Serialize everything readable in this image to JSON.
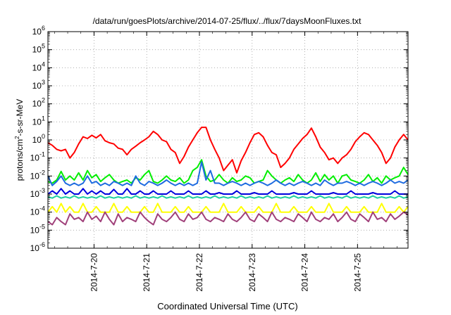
{
  "chart_data": {
    "type": "line",
    "title": "/data/run/goesPlots/archive/2014-07-25/flux/../flux/7daysMoonFluxes.txt",
    "xlabel": "Coordinated Universal Time (UTC)",
    "ylabel": {
      "base": "protons/cm",
      "sup": "2",
      "rest": "-s-sr-MeV"
    },
    "yscale": "log",
    "ylim": [
      1e-06,
      1000000.0
    ],
    "yticks": [
      {
        "base": "10",
        "exp": "-6",
        "value": 1e-06
      },
      {
        "base": "10",
        "exp": "-5",
        "value": 1e-05
      },
      {
        "base": "10",
        "exp": "-4",
        "value": 0.0001
      },
      {
        "base": "10",
        "exp": "-3",
        "value": 0.001
      },
      {
        "base": "10",
        "exp": "-2",
        "value": 0.01
      },
      {
        "base": "10",
        "exp": "-1",
        "value": 0.1
      },
      {
        "base": "10",
        "exp": "0",
        "value": 1
      },
      {
        "base": "10",
        "exp": "1",
        "value": 10
      },
      {
        "base": "10",
        "exp": "2",
        "value": 100
      },
      {
        "base": "10",
        "exp": "3",
        "value": 1000
      },
      {
        "base": "10",
        "exp": "4",
        "value": 10000
      },
      {
        "base": "10",
        "exp": "5",
        "value": 100000
      },
      {
        "base": "10",
        "exp": "6",
        "value": 1000000
      }
    ],
    "xlim": [
      "2014-07-19T03:00",
      "2014-07-25T23:00"
    ],
    "xticks": [
      {
        "label": "2014-7-20",
        "t": "2014-07-20T00:00"
      },
      {
        "label": "2014-7-21",
        "t": "2014-07-21T00:00"
      },
      {
        "label": "2014-7-22",
        "t": "2014-07-22T00:00"
      },
      {
        "label": "2014-7-23",
        "t": "2014-07-23T00:00"
      },
      {
        "label": "2014-7-24",
        "t": "2014-07-24T00:00"
      },
      {
        "label": "2014-7-25",
        "t": "2014-07-25T00:00"
      }
    ],
    "grid": true,
    "legend": "none",
    "x": [
      "2014-07-19T03:00",
      "2014-07-19T05:00",
      "2014-07-19T07:00",
      "2014-07-19T09:00",
      "2014-07-19T11:00",
      "2014-07-19T13:00",
      "2014-07-19T15:00",
      "2014-07-19T17:00",
      "2014-07-19T19:00",
      "2014-07-19T21:00",
      "2014-07-19T23:00",
      "2014-07-20T01:00",
      "2014-07-20T03:00",
      "2014-07-20T05:00",
      "2014-07-20T07:00",
      "2014-07-20T09:00",
      "2014-07-20T11:00",
      "2014-07-20T13:00",
      "2014-07-20T15:00",
      "2014-07-20T17:00",
      "2014-07-20T19:00",
      "2014-07-20T21:00",
      "2014-07-20T23:00",
      "2014-07-21T01:00",
      "2014-07-21T03:00",
      "2014-07-21T05:00",
      "2014-07-21T07:00",
      "2014-07-21T09:00",
      "2014-07-21T11:00",
      "2014-07-21T13:00",
      "2014-07-21T15:00",
      "2014-07-21T17:00",
      "2014-07-21T19:00",
      "2014-07-21T21:00",
      "2014-07-21T23:00",
      "2014-07-22T01:00",
      "2014-07-22T03:00",
      "2014-07-22T05:00",
      "2014-07-22T07:00",
      "2014-07-22T09:00",
      "2014-07-22T11:00",
      "2014-07-22T13:00",
      "2014-07-22T15:00",
      "2014-07-22T17:00",
      "2014-07-22T19:00",
      "2014-07-22T21:00",
      "2014-07-22T23:00",
      "2014-07-23T01:00",
      "2014-07-23T03:00",
      "2014-07-23T05:00",
      "2014-07-23T07:00",
      "2014-07-23T09:00",
      "2014-07-23T11:00",
      "2014-07-23T13:00",
      "2014-07-23T15:00",
      "2014-07-23T17:00",
      "2014-07-23T19:00",
      "2014-07-23T21:00",
      "2014-07-23T23:00",
      "2014-07-24T01:00",
      "2014-07-24T03:00",
      "2014-07-24T05:00",
      "2014-07-24T07:00",
      "2014-07-24T09:00",
      "2014-07-24T11:00",
      "2014-07-24T13:00",
      "2014-07-24T15:00",
      "2014-07-24T17:00",
      "2014-07-24T19:00",
      "2014-07-24T21:00",
      "2014-07-24T23:00",
      "2014-07-25T01:00",
      "2014-07-25T03:00",
      "2014-07-25T05:00",
      "2014-07-25T07:00",
      "2014-07-25T09:00",
      "2014-07-25T11:00",
      "2014-07-25T13:00",
      "2014-07-25T15:00",
      "2014-07-25T17:00",
      "2014-07-25T19:00",
      "2014-07-25T21:00",
      "2014-07-25T23:00"
    ],
    "series": [
      {
        "color": "#ff0000",
        "width": 2,
        "values": [
          0.7,
          0.5,
          0.3,
          0.25,
          0.3,
          0.1,
          0.2,
          0.6,
          1.5,
          1.2,
          1.8,
          1.3,
          2.0,
          0.9,
          0.7,
          0.6,
          0.35,
          0.3,
          0.15,
          0.3,
          0.45,
          0.7,
          1.0,
          1.5,
          3.0,
          2.0,
          1.0,
          0.8,
          0.3,
          0.2,
          0.05,
          0.12,
          0.4,
          1.0,
          2.5,
          5.0,
          5.0,
          1.0,
          0.3,
          0.1,
          0.02,
          0.04,
          0.08,
          0.015,
          0.07,
          0.2,
          0.7,
          2.0,
          2.5,
          1.5,
          0.5,
          0.2,
          0.15,
          0.03,
          0.05,
          0.1,
          0.3,
          0.6,
          1.2,
          2.0,
          4.5,
          1.5,
          0.4,
          0.2,
          0.08,
          0.1,
          0.05,
          0.1,
          0.15,
          0.3,
          0.8,
          1.5,
          2.5,
          2.0,
          1.0,
          0.5,
          0.2,
          0.05,
          0.1,
          0.4,
          1.0,
          2.0,
          1.0
        ]
      },
      {
        "color": "#00ee00",
        "width": 2,
        "values": [
          0.005,
          0.004,
          0.006,
          0.018,
          0.006,
          0.01,
          0.006,
          0.015,
          0.006,
          0.02,
          0.008,
          0.012,
          0.005,
          0.008,
          0.012,
          0.006,
          0.004,
          0.005,
          0.006,
          0.004,
          0.008,
          0.006,
          0.012,
          0.02,
          0.005,
          0.004,
          0.006,
          0.01,
          0.006,
          0.005,
          0.008,
          0.004,
          0.006,
          0.02,
          0.03,
          0.08,
          0.01,
          0.005,
          0.006,
          0.012,
          0.006,
          0.004,
          0.008,
          0.005,
          0.006,
          0.01,
          0.008,
          0.004,
          0.005,
          0.006,
          0.02,
          0.01,
          0.006,
          0.004,
          0.006,
          0.008,
          0.005,
          0.012,
          0.006,
          0.004,
          0.006,
          0.015,
          0.005,
          0.012,
          0.006,
          0.01,
          0.004,
          0.01,
          0.012,
          0.006,
          0.005,
          0.004,
          0.006,
          0.012,
          0.005,
          0.008,
          0.004,
          0.01,
          0.006,
          0.008,
          0.01,
          0.03,
          0.012
        ]
      },
      {
        "color": "#1e6be0",
        "width": 2,
        "values": [
          0.01,
          0.003,
          0.005,
          0.01,
          0.004,
          0.003,
          0.004,
          0.003,
          0.004,
          0.01,
          0.004,
          0.005,
          0.003,
          0.004,
          0.003,
          0.005,
          0.004,
          0.003,
          0.004,
          0.003,
          0.01,
          0.004,
          0.003,
          0.005,
          0.004,
          0.003,
          0.004,
          0.006,
          0.004,
          0.003,
          0.004,
          0.003,
          0.004,
          0.003,
          0.004,
          0.06,
          0.006,
          0.02,
          0.004,
          0.004,
          0.003,
          0.004,
          0.005,
          0.004,
          0.003,
          0.004,
          0.003,
          0.004,
          0.005,
          0.004,
          0.003,
          0.004,
          0.006,
          0.004,
          0.003,
          0.004,
          0.003,
          0.004,
          0.005,
          0.004,
          0.003,
          0.004,
          0.003,
          0.006,
          0.004,
          0.003,
          0.004,
          0.004,
          0.005,
          0.004,
          0.003,
          0.004,
          0.003,
          0.004,
          0.005,
          0.004,
          0.003,
          0.004,
          0.006,
          0.004,
          0.005,
          0.004,
          0.006
        ]
      },
      {
        "color": "#0000dd",
        "width": 2,
        "values": [
          0.001,
          0.0015,
          0.001,
          0.002,
          0.001,
          0.0015,
          0.001,
          0.001,
          0.002,
          0.001,
          0.0015,
          0.001,
          0.0015,
          0.001,
          0.001,
          0.0018,
          0.001,
          0.001,
          0.002,
          0.001,
          0.001,
          0.0015,
          0.001,
          0.001,
          0.0015,
          0.001,
          0.001,
          0.001,
          0.0015,
          0.001,
          0.001,
          0.001,
          0.0015,
          0.001,
          0.001,
          0.001,
          0.0015,
          0.001,
          0.001,
          0.0012,
          0.001,
          0.001,
          0.001,
          0.0015,
          0.001,
          0.001,
          0.001,
          0.0012,
          0.001,
          0.001,
          0.001,
          0.0015,
          0.001,
          0.001,
          0.001,
          0.001,
          0.0012,
          0.001,
          0.001,
          0.001,
          0.0015,
          0.001,
          0.001,
          0.001,
          0.001,
          0.0012,
          0.001,
          0.001,
          0.001,
          0.0015,
          0.001,
          0.001,
          0.001,
          0.001,
          0.0012,
          0.001,
          0.001,
          0.001,
          0.001,
          0.0015,
          0.001,
          0.001,
          0.001
        ]
      },
      {
        "color": "#20d0a0",
        "width": 2,
        "values": [
          0.0007,
          0.0006,
          0.0008,
          0.0006,
          0.0007,
          0.0006,
          0.0008,
          0.0006,
          0.0007,
          0.0006,
          0.0007,
          0.0006,
          0.0008,
          0.0006,
          0.0007,
          0.0006,
          0.0007,
          0.0006,
          0.0007,
          0.0006,
          0.0008,
          0.0006,
          0.0007,
          0.0006,
          0.0007,
          0.0006,
          0.0008,
          0.0006,
          0.0007,
          0.0006,
          0.0007,
          0.0006,
          0.0008,
          0.0006,
          0.0007,
          0.0006,
          0.0007,
          0.0006,
          0.0008,
          0.0006,
          0.0007,
          0.0006,
          0.0007,
          0.0006,
          0.0008,
          0.0006,
          0.0007,
          0.0006,
          0.0007,
          0.0006,
          0.0008,
          0.0006,
          0.0007,
          0.0006,
          0.0007,
          0.0006,
          0.0008,
          0.0006,
          0.0007,
          0.0006,
          0.0007,
          0.0006,
          0.0008,
          0.0006,
          0.0007,
          0.0006,
          0.0007,
          0.0006,
          0.0008,
          0.0006,
          0.0007,
          0.0006,
          0.0007,
          0.0006,
          0.0008,
          0.0006,
          0.0007,
          0.0006,
          0.0007,
          0.0006,
          0.0008,
          0.0006,
          0.0007
        ]
      },
      {
        "color": "#ffff00",
        "width": 2,
        "values": [
          0.0001,
          0.0002,
          0.0001,
          0.0003,
          0.0001,
          0.0002,
          0.0001,
          0.0001,
          0.0003,
          0.0001,
          0.0001,
          0.0002,
          0.0001,
          0.0001,
          0.0001,
          0.0003,
          0.0001,
          0.0001,
          0.0002,
          0.0001,
          0.0001,
          0.0001,
          0.0002,
          0.0001,
          0.0001,
          0.0003,
          0.0001,
          0.0001,
          0.0001,
          0.0002,
          0.0001,
          0.0001,
          0.0002,
          0.0001,
          0.0001,
          0.0001,
          0.0002,
          0.0001,
          0.0001,
          0.0001,
          0.0003,
          0.0001,
          0.0001,
          0.0001,
          0.0002,
          0.0001,
          0.0001,
          0.0001,
          0.0002,
          0.0001,
          0.0001,
          0.0001,
          0.0003,
          0.0001,
          0.0001,
          0.0001,
          0.0002,
          0.0001,
          0.0001,
          0.0001,
          0.0002,
          0.0001,
          0.0001,
          0.0001,
          0.0003,
          0.0001,
          0.0001,
          0.0001,
          0.0002,
          0.0001,
          0.0001,
          0.0001,
          0.0002,
          0.0001,
          0.0001,
          0.0001,
          0.0003,
          0.0001,
          0.0001,
          0.0001,
          0.0002,
          0.0001,
          0.0002
        ]
      },
      {
        "color": "#a0407a",
        "width": 2,
        "values": [
          3e-05,
          2e-05,
          5e-05,
          3e-05,
          2e-05,
          8e-05,
          4e-05,
          5e-05,
          3e-05,
          0.0001,
          4e-05,
          6e-05,
          3e-05,
          0.0001,
          4e-05,
          2e-05,
          8e-05,
          3e-05,
          5e-05,
          4e-05,
          3e-05,
          0.0001,
          5e-05,
          3e-05,
          2e-05,
          8e-05,
          4e-05,
          3e-05,
          5e-05,
          0.0001,
          4e-05,
          3e-05,
          8e-05,
          4e-05,
          5e-05,
          0.0001,
          4e-05,
          3e-05,
          5e-05,
          4e-05,
          3e-05,
          8e-05,
          4e-05,
          3e-05,
          5e-05,
          0.0001,
          4e-05,
          3e-05,
          8e-05,
          5e-05,
          3e-05,
          0.0001,
          4e-05,
          3e-05,
          5e-05,
          4e-05,
          3e-05,
          8e-05,
          5e-05,
          3e-05,
          0.0001,
          4e-05,
          3e-05,
          5e-05,
          4e-05,
          8e-05,
          3e-05,
          5e-05,
          0.0001,
          4e-05,
          3e-05,
          8e-05,
          5e-05,
          3e-05,
          0.0001,
          4e-05,
          5e-05,
          3e-05,
          8e-05,
          4e-05,
          6e-05,
          0.0001,
          7e-05
        ]
      }
    ]
  }
}
